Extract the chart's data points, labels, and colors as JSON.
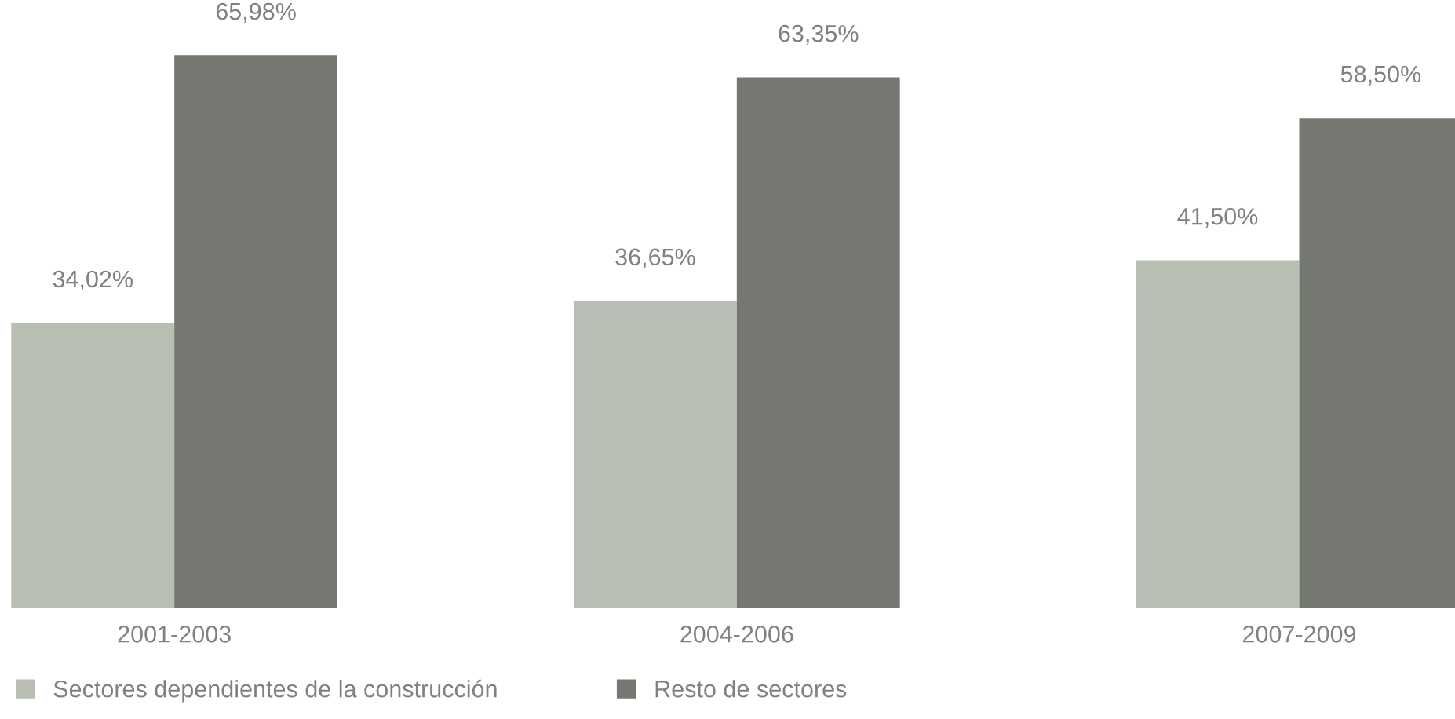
{
  "chart_data": {
    "type": "bar",
    "categories": [
      "2001-2003",
      "2004-2006",
      "2007-2009"
    ],
    "series": [
      {
        "name": "Sectores dependientes de la construcción",
        "color": "#b9beb3",
        "values": [
          34.02,
          36.65,
          41.5
        ],
        "value_labels": [
          "34,02%",
          "36,65%",
          "41,50%"
        ]
      },
      {
        "name": "Resto de sectores",
        "color": "#747870",
        "values": [
          65.98,
          63.35,
          58.5
        ],
        "value_labels": [
          "65,98%",
          "63,35%",
          "58,50%"
        ]
      }
    ],
    "legend": "bottom left",
    "grid": false
  }
}
